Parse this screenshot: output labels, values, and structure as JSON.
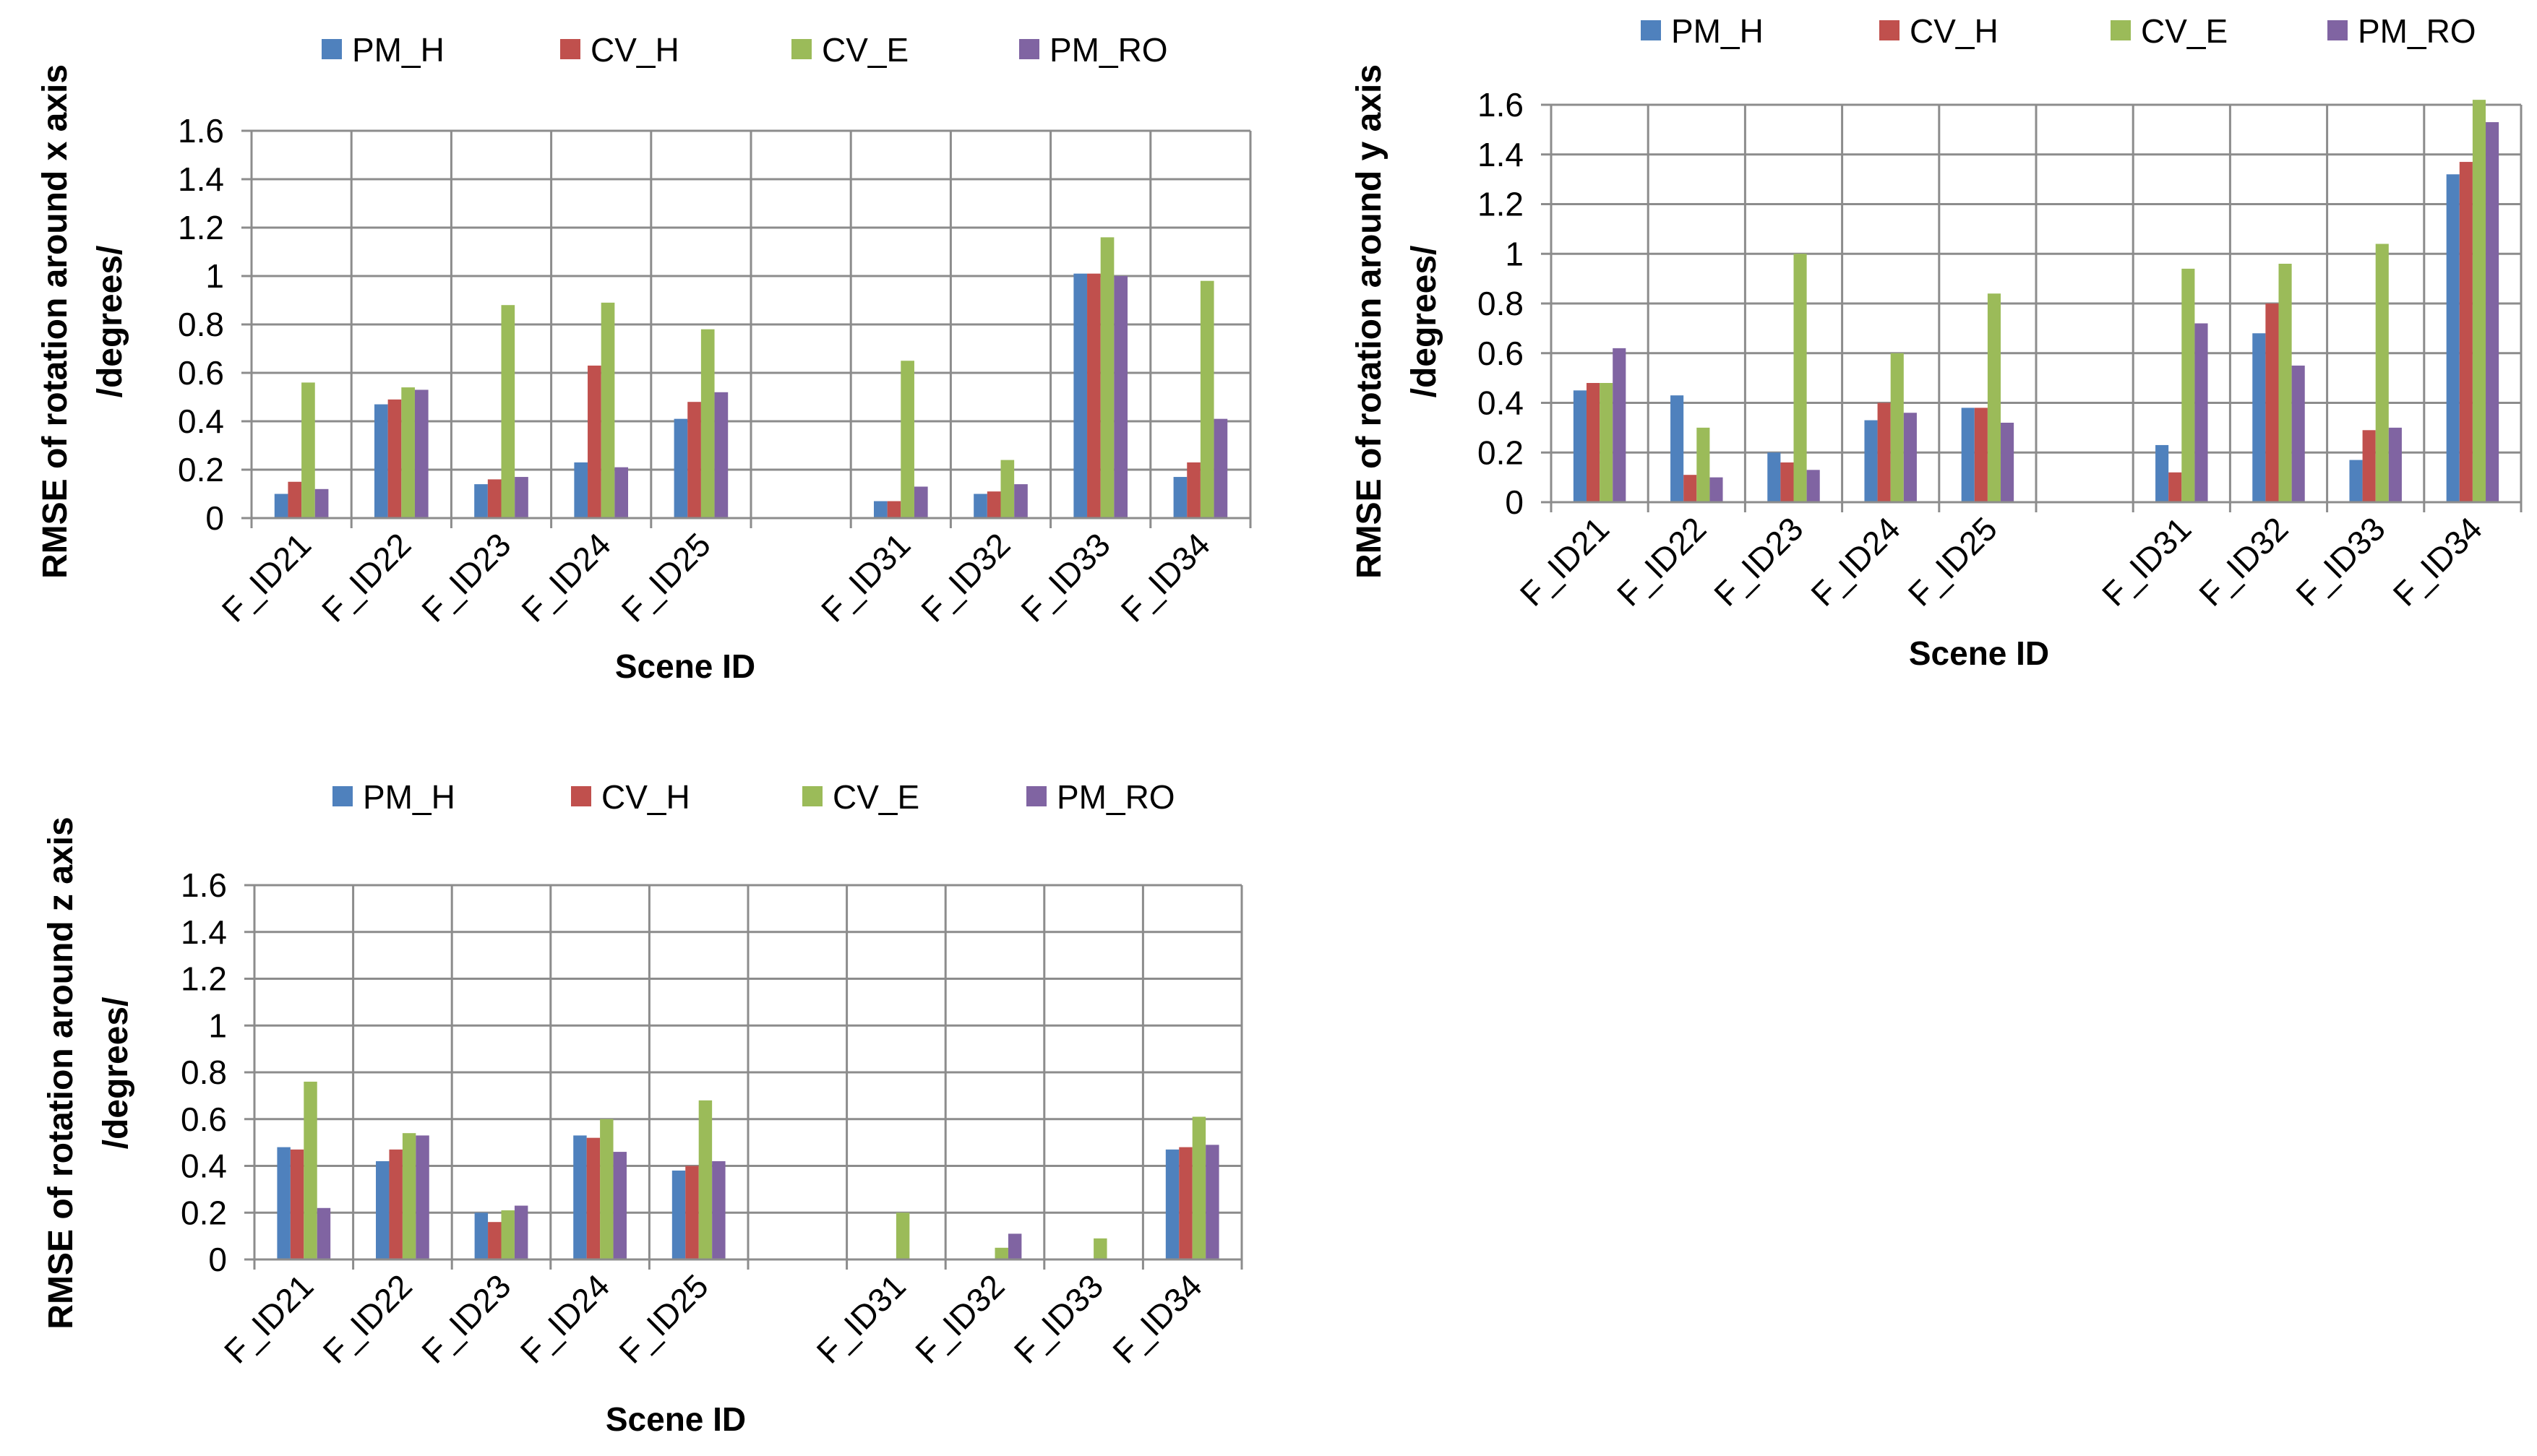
{
  "legend_labels": [
    "PM_H",
    "CV_H",
    "CV_E",
    "PM_RO"
  ],
  "series_colors": [
    "#4F81BD",
    "#C0504D",
    "#9BBB59",
    "#8064A2"
  ],
  "chart_data": [
    {
      "type": "bar",
      "title": "",
      "xlabel": "Scene ID",
      "ylabel_lines": [
        "RMSE of rotation around x axis",
        "/degrees/"
      ],
      "ylim": [
        0,
        1.6
      ],
      "yticks": [
        "0",
        "0.2",
        "0.4",
        "0.6",
        "0.8",
        "1",
        "1.2",
        "1.4",
        "1.6"
      ],
      "grid": true,
      "legend_position": "top",
      "categories": [
        "F_ID21",
        "F_ID22",
        "F_ID23",
        "F_ID24",
        "F_ID25",
        "",
        "F_ID31",
        "F_ID32",
        "F_ID33",
        "F_ID34"
      ],
      "series": [
        {
          "name": "PM_H",
          "values": [
            0.1,
            0.47,
            0.14,
            0.23,
            0.41,
            null,
            0.07,
            0.1,
            1.01,
            0.17
          ]
        },
        {
          "name": "CV_H",
          "values": [
            0.15,
            0.49,
            0.16,
            0.63,
            0.48,
            null,
            0.07,
            0.11,
            1.01,
            0.23
          ]
        },
        {
          "name": "CV_E",
          "values": [
            0.56,
            0.54,
            0.88,
            0.89,
            0.78,
            null,
            0.65,
            0.24,
            1.16,
            0.98
          ]
        },
        {
          "name": "PM_RO",
          "values": [
            0.12,
            0.53,
            0.17,
            0.21,
            0.52,
            null,
            0.13,
            0.14,
            1.0,
            0.41
          ]
        }
      ]
    },
    {
      "type": "bar",
      "title": "",
      "xlabel": "Scene ID",
      "ylabel_lines": [
        "RMSE of rotation around y axis",
        "/degrees/"
      ],
      "ylim": [
        0,
        1.6
      ],
      "yticks": [
        "0",
        "0.2",
        "0.4",
        "0.6",
        "0.8",
        "1",
        "1.2",
        "1.4",
        "1.6"
      ],
      "grid": true,
      "legend_position": "top",
      "categories": [
        "F_ID21",
        "F_ID22",
        "F_ID23",
        "F_ID24",
        "F_ID25",
        "",
        "F_ID31",
        "F_ID32",
        "F_ID33",
        "F_ID34"
      ],
      "series": [
        {
          "name": "PM_H",
          "values": [
            0.45,
            0.43,
            0.2,
            0.33,
            0.38,
            null,
            0.23,
            0.68,
            0.17,
            1.32
          ]
        },
        {
          "name": "CV_H",
          "values": [
            0.48,
            0.11,
            0.16,
            0.4,
            0.38,
            null,
            0.12,
            0.8,
            0.29,
            1.37
          ]
        },
        {
          "name": "CV_E",
          "values": [
            0.48,
            0.3,
            1.0,
            0.6,
            0.84,
            null,
            0.94,
            0.96,
            1.04,
            1.62
          ]
        },
        {
          "name": "PM_RO",
          "values": [
            0.62,
            0.1,
            0.13,
            0.36,
            0.32,
            null,
            0.72,
            0.55,
            0.3,
            1.53
          ]
        }
      ]
    },
    {
      "type": "bar",
      "title": "",
      "xlabel": "Scene ID",
      "ylabel_lines": [
        "RMSE of rotation around z axis",
        "/degrees/"
      ],
      "ylim": [
        0,
        1.6
      ],
      "yticks": [
        "0",
        "0.2",
        "0.4",
        "0.6",
        "0.8",
        "1",
        "1.2",
        "1.4",
        "1.6"
      ],
      "grid": true,
      "legend_position": "top",
      "categories": [
        "F_ID21",
        "F_ID22",
        "F_ID23",
        "F_ID24",
        "F_ID25",
        "",
        "F_ID31",
        "F_ID32",
        "F_ID33",
        "F_ID34"
      ],
      "series": [
        {
          "name": "PM_H",
          "values": [
            0.48,
            0.42,
            0.2,
            0.53,
            0.38,
            null,
            0,
            0,
            0,
            0.47
          ]
        },
        {
          "name": "CV_H",
          "values": [
            0.47,
            0.47,
            0.16,
            0.52,
            0.4,
            null,
            0,
            0,
            0,
            0.48
          ]
        },
        {
          "name": "CV_E",
          "values": [
            0.76,
            0.54,
            0.21,
            0.6,
            0.68,
            null,
            0.2,
            0.05,
            0.09,
            0.61
          ]
        },
        {
          "name": "PM_RO",
          "values": [
            0.22,
            0.53,
            0.23,
            0.46,
            0.42,
            null,
            0,
            0.11,
            0,
            0.49
          ]
        }
      ]
    }
  ]
}
